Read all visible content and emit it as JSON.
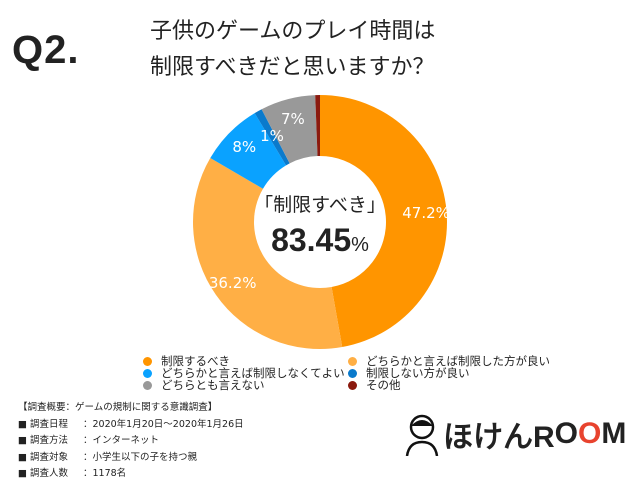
{
  "question_number": "Q2.",
  "title_lines": [
    "子供のゲームのプレイ時間は",
    "制限すべきだと思いますか？"
  ],
  "center": {
    "label": "「制限すべき」",
    "value": "83.45",
    "unit": "%"
  },
  "chart_data": {
    "type": "pie",
    "donut": true,
    "categories": [
      "制限するべき",
      "どちらかと言えば制限した方が良い",
      "どちらかと言えば制限しなくてよい",
      "制限しない方が良い",
      "どちらとも言えない",
      "その他"
    ],
    "values": [
      47.2,
      36.2,
      8,
      1,
      7,
      0.6
    ],
    "data_labels": [
      "47.2%",
      "36.2%",
      "8%",
      "1%",
      "7%",
      ""
    ],
    "colors": [
      "#FF9500",
      "#FFAF45",
      "#0AA2FF",
      "#0A7ACC",
      "#999999",
      "#8B1A0E"
    ],
    "legend_placement": "bottom"
  },
  "legend": [
    {
      "label": "制限するべき",
      "color": "#FF9500"
    },
    {
      "label": "どちらかと言えば制限した方が良い",
      "color": "#FFAF45"
    },
    {
      "label": "どちらかと言えば制限しなくてよい",
      "color": "#0AA2FF"
    },
    {
      "label": "制限しない方が良い",
      "color": "#0A7ACC"
    },
    {
      "label": "どちらとも言えない",
      "color": "#999999"
    },
    {
      "label": "その他",
      "color": "#8B1A0E"
    }
  ],
  "survey": {
    "heading": "【調査概要：ゲームの規制に関する意識調査】",
    "rows": [
      {
        "k": "■ 調査日程",
        "v": "：2020年1月20日〜2020年1月26日"
      },
      {
        "k": "■ 調査方法",
        "v": "：インターネット"
      },
      {
        "k": "■ 調査対象",
        "v": "：小学生以下の子を持つ親"
      },
      {
        "k": "■ 調査人数",
        "v": "：1178名"
      }
    ]
  },
  "logo": {
    "text_a": "ほけんR",
    "text_o1": "O",
    "text_o2": "O",
    "text_b": "M",
    "accent": "#E8432E"
  }
}
